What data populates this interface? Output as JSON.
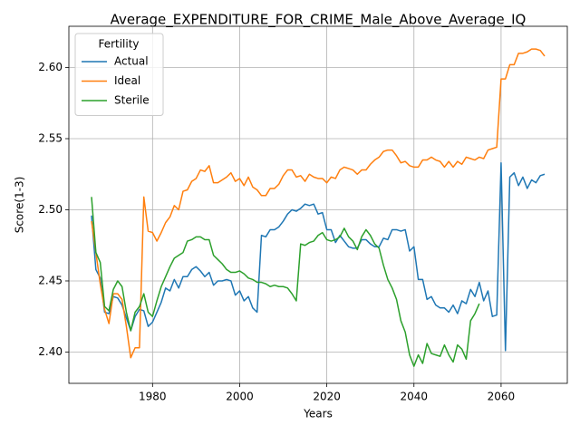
{
  "chart_data": {
    "type": "line",
    "title": "Average_EXPENDITURE_FOR_CRIME_Male_Above_Average_IQ",
    "x_label": "Years",
    "y_label": "Score(1-3)",
    "legend_title": "Fertility",
    "legend": "upper left",
    "grid": true,
    "xlim": [
      1960.8,
      2075.2
    ],
    "ylim": [
      2.378,
      2.629
    ],
    "xticks": [
      1980,
      2000,
      2020,
      2040,
      2060
    ],
    "yticks": [
      {
        "value": 2.4,
        "label": "2.40"
      },
      {
        "value": 2.45,
        "label": "2.45"
      },
      {
        "value": 2.5,
        "label": "2.50"
      },
      {
        "value": 2.55,
        "label": "2.55"
      },
      {
        "value": 2.6,
        "label": "2.60"
      }
    ],
    "x": [
      1966,
      1967,
      1968,
      1969,
      1970,
      1971,
      1972,
      1973,
      1974,
      1975,
      1976,
      1977,
      1978,
      1979,
      1980,
      1981,
      1982,
      1983,
      1984,
      1985,
      1986,
      1987,
      1988,
      1989,
      1990,
      1991,
      1992,
      1993,
      1994,
      1995,
      1996,
      1997,
      1998,
      1999,
      2000,
      2001,
      2002,
      2003,
      2004,
      2005,
      2006,
      2007,
      2008,
      2009,
      2010,
      2011,
      2012,
      2013,
      2014,
      2015,
      2016,
      2017,
      2018,
      2019,
      2020,
      2021,
      2022,
      2023,
      2024,
      2025,
      2026,
      2027,
      2028,
      2029,
      2030,
      2031,
      2032,
      2033,
      2034,
      2035,
      2036,
      2037,
      2038,
      2039,
      2040,
      2041,
      2042,
      2043,
      2044,
      2045,
      2046,
      2047,
      2048,
      2049,
      2050,
      2051,
      2052,
      2053,
      2054,
      2055,
      2056,
      2057,
      2058,
      2059,
      2060,
      2061,
      2062,
      2063,
      2064,
      2065,
      2066,
      2067,
      2068,
      2069,
      2070
    ],
    "series": [
      {
        "name": "Actual",
        "color": "#1f77b4",
        "values": [
          2.496,
          2.458,
          2.452,
          2.428,
          2.427,
          2.439,
          2.438,
          2.433,
          2.424,
          2.415,
          2.425,
          2.43,
          2.429,
          2.418,
          2.421,
          2.428,
          2.435,
          2.445,
          2.443,
          2.451,
          2.445,
          2.453,
          2.453,
          2.458,
          2.46,
          2.457,
          2.453,
          2.456,
          2.447,
          2.45,
          2.45,
          2.451,
          2.45,
          2.44,
          2.443,
          2.436,
          2.439,
          2.431,
          2.428,
          2.482,
          2.481,
          2.486,
          2.486,
          2.488,
          2.492,
          2.497,
          2.5,
          2.499,
          2.501,
          2.504,
          2.503,
          2.504,
          2.497,
          2.498,
          2.486,
          2.486,
          2.477,
          2.482,
          2.478,
          2.474,
          2.473,
          2.473,
          2.479,
          2.479,
          2.476,
          2.474,
          2.474,
          2.48,
          2.479,
          2.486,
          2.486,
          2.485,
          2.486,
          2.471,
          2.474,
          2.451,
          2.451,
          2.437,
          2.439,
          2.433,
          2.431,
          2.431,
          2.428,
          2.433,
          2.427,
          2.436,
          2.434,
          2.444,
          2.439,
          2.449,
          2.436,
          2.443,
          2.425,
          2.426,
          2.533,
          2.401,
          2.523,
          2.526,
          2.517,
          2.523,
          2.515,
          2.521,
          2.519,
          2.524,
          2.525
        ]
      },
      {
        "name": "Ideal",
        "color": "#ff7f0e",
        "values": [
          2.492,
          2.47,
          2.448,
          2.43,
          2.42,
          2.441,
          2.441,
          2.437,
          2.418,
          2.396,
          2.403,
          2.403,
          2.509,
          2.485,
          2.484,
          2.478,
          2.484,
          2.491,
          2.495,
          2.503,
          2.5,
          2.513,
          2.514,
          2.52,
          2.522,
          2.528,
          2.527,
          2.531,
          2.519,
          2.519,
          2.521,
          2.523,
          2.526,
          2.52,
          2.522,
          2.517,
          2.523,
          2.516,
          2.514,
          2.51,
          2.51,
          2.515,
          2.515,
          2.518,
          2.524,
          2.528,
          2.528,
          2.523,
          2.524,
          2.52,
          2.525,
          2.523,
          2.522,
          2.522,
          2.519,
          2.523,
          2.522,
          2.528,
          2.53,
          2.529,
          2.528,
          2.525,
          2.528,
          2.528,
          2.532,
          2.535,
          2.537,
          2.541,
          2.542,
          2.542,
          2.538,
          2.533,
          2.534,
          2.531,
          2.53,
          2.53,
          2.535,
          2.535,
          2.537,
          2.535,
          2.534,
          2.53,
          2.534,
          2.53,
          2.534,
          2.532,
          2.537,
          2.536,
          2.535,
          2.537,
          2.536,
          2.542,
          2.543,
          2.544,
          2.592,
          2.592,
          2.602,
          2.602,
          2.61,
          2.61,
          2.611,
          2.613,
          2.613,
          2.612,
          2.608
        ]
      },
      {
        "name": "Sterile",
        "color": "#2ca02c",
        "values": [
          2.509,
          2.47,
          2.463,
          2.432,
          2.429,
          2.444,
          2.45,
          2.446,
          2.428,
          2.415,
          2.428,
          2.432,
          2.441,
          2.428,
          2.425,
          2.436,
          2.446,
          2.453,
          2.46,
          2.466,
          2.468,
          2.47,
          2.478,
          2.479,
          2.481,
          2.481,
          2.479,
          2.479,
          2.468,
          2.465,
          2.462,
          2.458,
          2.456,
          2.456,
          2.457,
          2.455,
          2.452,
          2.451,
          2.449,
          2.449,
          2.448,
          2.446,
          2.447,
          2.446,
          2.446,
          2.445,
          2.441,
          2.436,
          2.476,
          2.475,
          2.477,
          2.478,
          2.482,
          2.484,
          2.479,
          2.478,
          2.479,
          2.481,
          2.487,
          2.481,
          2.478,
          2.472,
          2.481,
          2.486,
          2.482,
          2.476,
          2.473,
          2.461,
          2.451,
          2.445,
          2.437,
          2.422,
          2.414,
          2.398,
          2.39,
          2.398,
          2.392,
          2.406,
          2.399,
          2.398,
          2.397,
          2.405,
          2.398,
          2.393,
          2.405,
          2.402,
          2.395,
          2.422,
          2.427,
          2.434,
          null,
          null,
          null,
          null,
          null,
          null,
          null,
          null,
          null,
          null,
          null,
          null,
          null,
          null,
          null
        ]
      }
    ]
  }
}
